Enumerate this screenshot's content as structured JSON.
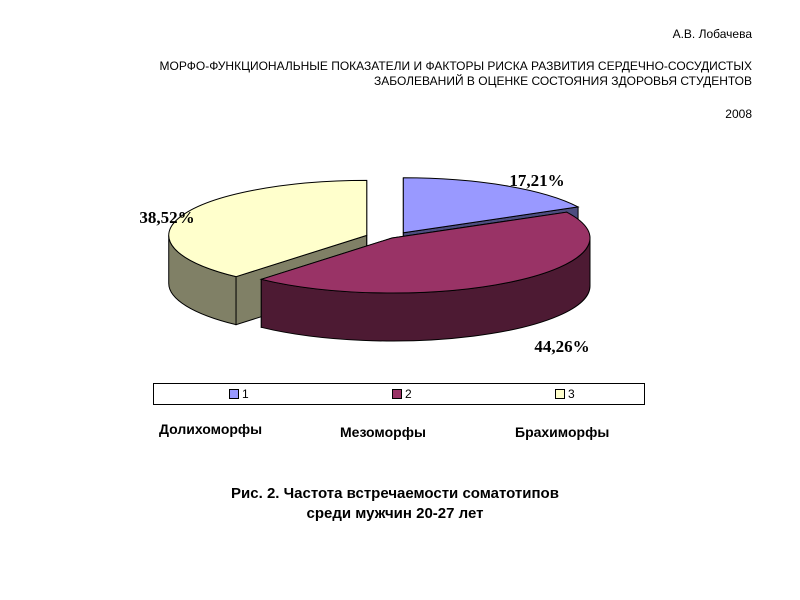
{
  "header": {
    "author": "А.В. Лобачева",
    "title_line1": "МОРФО-ФУНКЦИОНАЛЬНЫЕ  ПОКАЗАТЕЛИ  И ФАКТОРЫ РИСКА РАЗВИТИЯ СЕРДЕЧНО-СОСУДИСТЫХ",
    "title_line2": "ЗАБОЛЕВАНИЙ  В ОЦЕНКЕ СОСТОЯНИЯ ЗДОРОВЬЯ СТУДЕНТОВ",
    "year": "2008"
  },
  "chart_data": {
    "type": "pie",
    "style": "3d-exploded",
    "categories": [
      "1",
      "2",
      "3"
    ],
    "values": [
      17.21,
      44.26,
      38.52
    ],
    "data_labels": [
      "17,21%",
      "44,26%",
      "38,52%"
    ],
    "colors": [
      "#9999ff",
      "#993366",
      "#ffffcc"
    ],
    "legend": {
      "position": "bottom",
      "entries": [
        "1",
        "2",
        "3"
      ]
    },
    "category_names": [
      "Долихоморфы",
      "Мезоморфы",
      "Брахиморфы"
    ]
  },
  "caption": {
    "line1": "Рис. 2. Частота встречаемости соматотипов",
    "line2": "среди мужчин 20-27 лет"
  }
}
